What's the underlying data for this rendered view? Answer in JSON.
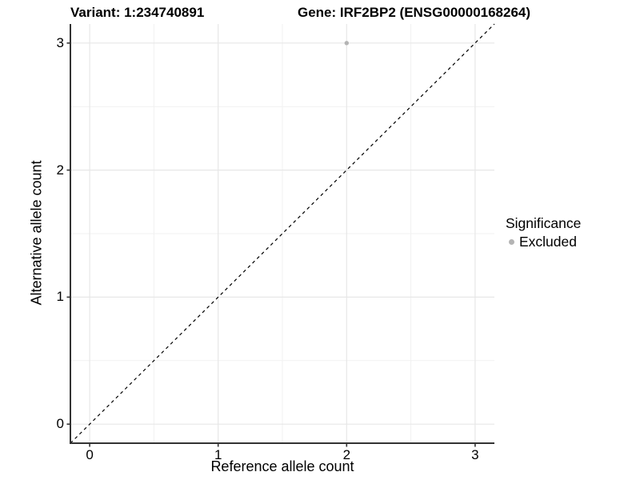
{
  "chart_data": {
    "type": "scatter",
    "titles": {
      "variant": "Variant: 1:234740891",
      "gene": "Gene: IRF2BP2 (ENSG00000168264)"
    },
    "xlabel": "Reference allele count",
    "ylabel": "Alternative allele count",
    "xlim": [
      -0.15,
      3.15
    ],
    "ylim": [
      -0.15,
      3.15
    ],
    "x_ticks": [
      0,
      1,
      2,
      3
    ],
    "y_ticks": [
      0,
      1,
      2,
      3
    ],
    "minor_gridlines": [
      0.5,
      1.5,
      2.5
    ],
    "grid": true,
    "identity_line": {
      "style": "dashed",
      "slope": 1,
      "intercept": 0
    },
    "points": [
      {
        "x": 2,
        "y": 3,
        "significance": "Excluded"
      }
    ],
    "legend": {
      "title": "Significance",
      "position": "right",
      "items": [
        {
          "label": "Excluded",
          "color": "#b4b4b4"
        }
      ]
    },
    "colors": {
      "point": "#b4b4b4",
      "grid_major": "#e7e7e7",
      "grid_minor": "#f1f1f1",
      "axis": "#333333",
      "identity_line": "#000000",
      "text": "#000000",
      "background": "#ffffff"
    }
  }
}
